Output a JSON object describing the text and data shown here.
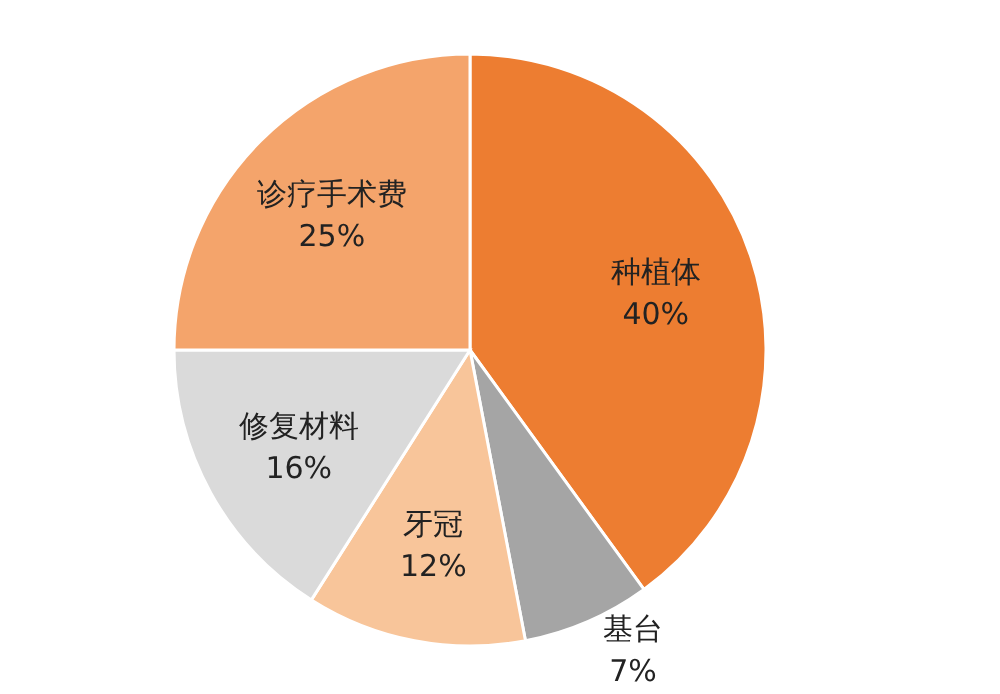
{
  "chart_data": {
    "type": "pie",
    "categories": [
      "种植体",
      "基台",
      "牙冠",
      "修复材料",
      "诊疗手术费"
    ],
    "values": [
      40,
      7,
      12,
      16,
      25
    ],
    "value_labels": [
      "40%",
      "7%",
      "12%",
      "16%",
      "25%"
    ],
    "colors": [
      "#ed7d31",
      "#a5a5a5",
      "#f8c59a",
      "#dadada",
      "#f4a46b"
    ]
  }
}
